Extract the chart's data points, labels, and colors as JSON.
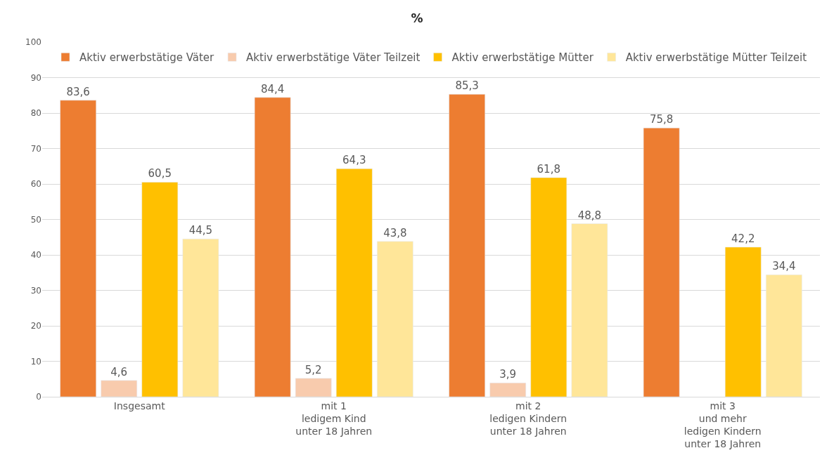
{
  "chart_data": {
    "type": "bar",
    "title": "%",
    "categories": [
      "Insgesamt",
      "mit 1\nledigem Kind\nunter 18 Jahren",
      "mit 2\nledigen Kindern\nunter 18 Jahren",
      "mit 3\nund mehr\nledigen Kindern\nunter 18 Jahren"
    ],
    "series": [
      {
        "name": "Aktiv erwerbstätige Väter",
        "color": "#ed7d31",
        "values": [
          83.6,
          84.4,
          85.3,
          75.8
        ],
        "value_labels": [
          "83,6",
          "84,4",
          "85,3",
          "75,8"
        ]
      },
      {
        "name": "Aktiv erwerbstätige Väter Teilzeit",
        "color": "#f8cbad",
        "values": [
          4.6,
          5.2,
          3.9,
          null
        ],
        "value_labels": [
          "4,6",
          "5,2",
          "3,9",
          null
        ]
      },
      {
        "name": "Aktiv erwerbstätige Mütter",
        "color": "#ffc000",
        "values": [
          60.5,
          64.3,
          61.8,
          42.2
        ],
        "value_labels": [
          "60,5",
          "64,3",
          "61,8",
          "42,2"
        ]
      },
      {
        "name": "Aktiv erwerbstätige Mütter Teilzeit",
        "color": "#ffe699",
        "values": [
          44.5,
          43.8,
          48.8,
          34.4
        ],
        "value_labels": [
          "44,5",
          "43,8",
          "48,8",
          "34,4"
        ]
      }
    ],
    "ylim": [
      0,
      100
    ],
    "yticks": [
      0,
      10,
      20,
      30,
      40,
      50,
      60,
      70,
      80,
      90,
      100
    ],
    "grid": "y",
    "legend": "top"
  }
}
